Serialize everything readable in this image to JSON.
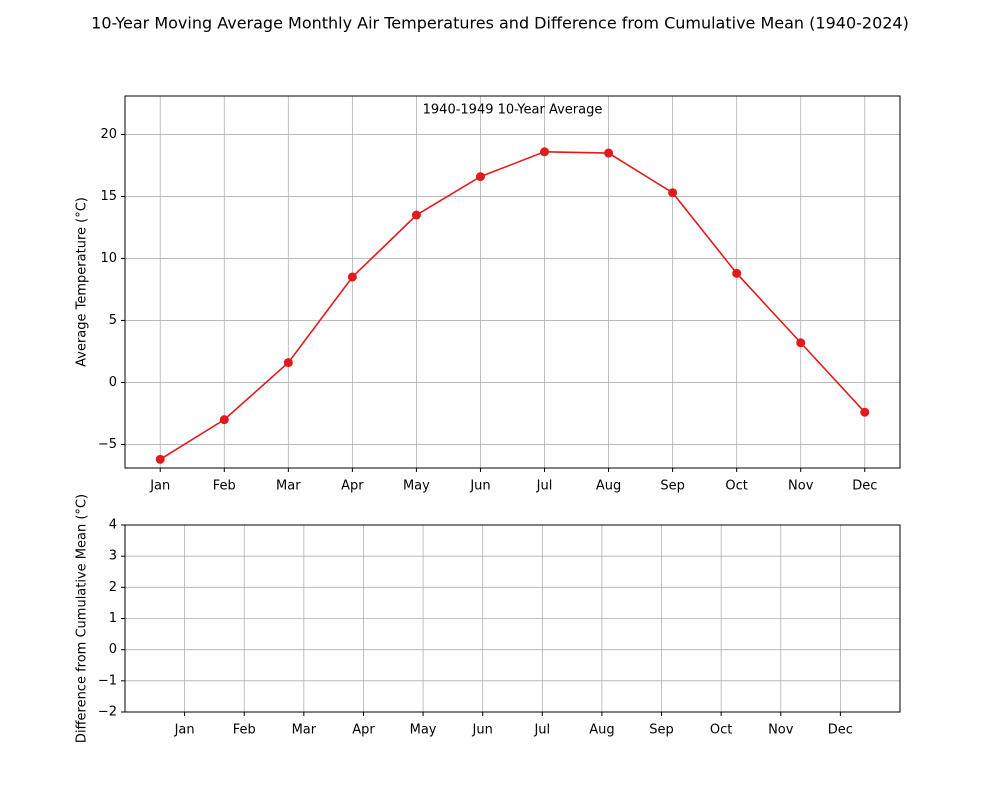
{
  "title": "10-Year Moving Average Monthly Air Temperatures and Difference from Cumulative Mean (1940-2024)",
  "chart_data": [
    {
      "type": "line",
      "annotation": "1940-1949 10-Year Average",
      "ylabel": "Average Temperature (°C)",
      "categories": [
        "Jan",
        "Feb",
        "Mar",
        "Apr",
        "May",
        "Jun",
        "Jul",
        "Aug",
        "Sep",
        "Oct",
        "Nov",
        "Dec"
      ],
      "series": [
        {
          "color": "#e31a1c",
          "values": [
            -6.2,
            -3.0,
            1.6,
            8.5,
            13.5,
            16.6,
            18.6,
            18.5,
            15.3,
            8.8,
            3.2,
            -2.4
          ]
        }
      ],
      "ylim": [
        -6.9,
        23.1
      ],
      "yticks": [
        {
          "value": -5,
          "label": "−5"
        },
        0,
        5,
        10,
        15,
        20
      ],
      "grid": true
    },
    {
      "type": "bar",
      "ylabel": "Difference from Cumulative Mean (°C)",
      "categories": [
        "Jan",
        "Feb",
        "Mar",
        "Apr",
        "May",
        "Jun",
        "Jul",
        "Aug",
        "Sep",
        "Oct",
        "Nov",
        "Dec"
      ],
      "ylim": [
        -2,
        4
      ],
      "yticks": [
        {
          "value": -2,
          "label": "−2"
        },
        {
          "value": -1,
          "label": "−1"
        },
        0,
        1,
        2,
        3,
        4
      ],
      "grid": true
    }
  ]
}
